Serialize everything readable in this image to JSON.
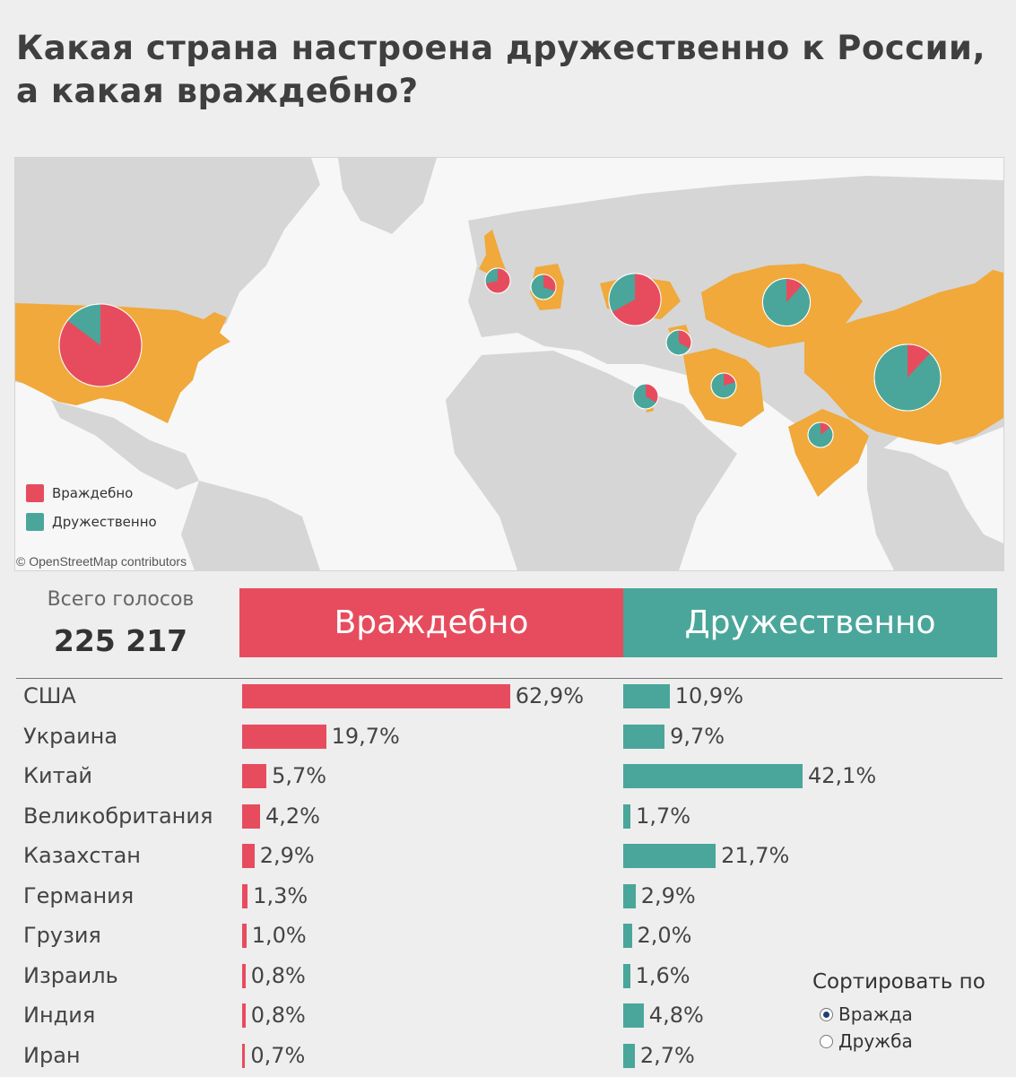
{
  "title_lines": [
    "Какая страна настроена дружественно к России,",
    "а какая враждебно?"
  ],
  "colors": {
    "hostile": "#e74c5e",
    "friendly": "#4aa69a",
    "land": "#d4d4d4",
    "highlight": "#f0a93a"
  },
  "map": {
    "legend": [
      {
        "label": "Враждебно",
        "color": "#e74c5e"
      },
      {
        "label": "Дружественно",
        "color": "#4aa69a"
      }
    ],
    "credit": "© OpenStreetMap contributors"
  },
  "totals": {
    "label": "Всего голосов",
    "value": "225 217"
  },
  "headers": {
    "hostile": "Враждебно",
    "friendly": "Дружественно"
  },
  "chart_data": {
    "type": "bar",
    "categories": [
      "США",
      "Украина",
      "Китай",
      "Великобритания",
      "Казахстан",
      "Германия",
      "Грузия",
      "Израиль",
      "Индия",
      "Иран"
    ],
    "series": [
      {
        "name": "Враждебно",
        "values": [
          62.9,
          19.7,
          5.7,
          4.2,
          2.9,
          1.3,
          1.0,
          0.8,
          0.8,
          0.7
        ],
        "labels": [
          "62,9%",
          "19,7%",
          "5,7%",
          "4,2%",
          "2,9%",
          "1,3%",
          "1,0%",
          "0,8%",
          "0,8%",
          "0,7%"
        ]
      },
      {
        "name": "Дружественно",
        "values": [
          10.9,
          9.7,
          42.1,
          1.7,
          21.7,
          2.9,
          2.0,
          1.6,
          4.8,
          2.7
        ],
        "labels": [
          "10,9%",
          "9,7%",
          "42,1%",
          "1,7%",
          "21,7%",
          "2,9%",
          "2,0%",
          "1,6%",
          "4,8%",
          "2,7%"
        ]
      }
    ],
    "pie_markers": [
      {
        "country": "США",
        "hostile": 62.9,
        "friendly": 10.9
      },
      {
        "country": "Великобритания",
        "hostile": 4.2,
        "friendly": 1.7
      },
      {
        "country": "Германия",
        "hostile": 1.3,
        "friendly": 2.9
      },
      {
        "country": "Украина",
        "hostile": 19.7,
        "friendly": 9.7
      },
      {
        "country": "Казахстан",
        "hostile": 2.9,
        "friendly": 21.7
      },
      {
        "country": "Грузия",
        "hostile": 1.0,
        "friendly": 2.0
      },
      {
        "country": "Израиль",
        "hostile": 0.8,
        "friendly": 1.6
      },
      {
        "country": "Иран",
        "hostile": 0.7,
        "friendly": 2.7
      },
      {
        "country": "Китай",
        "hostile": 5.7,
        "friendly": 42.1
      },
      {
        "country": "Индия",
        "hostile": 0.8,
        "friendly": 4.8
      }
    ]
  },
  "sort": {
    "title": "Сортировать по",
    "options": [
      {
        "label": "Вражда",
        "checked": true
      },
      {
        "label": "Дружба",
        "checked": false
      }
    ]
  }
}
